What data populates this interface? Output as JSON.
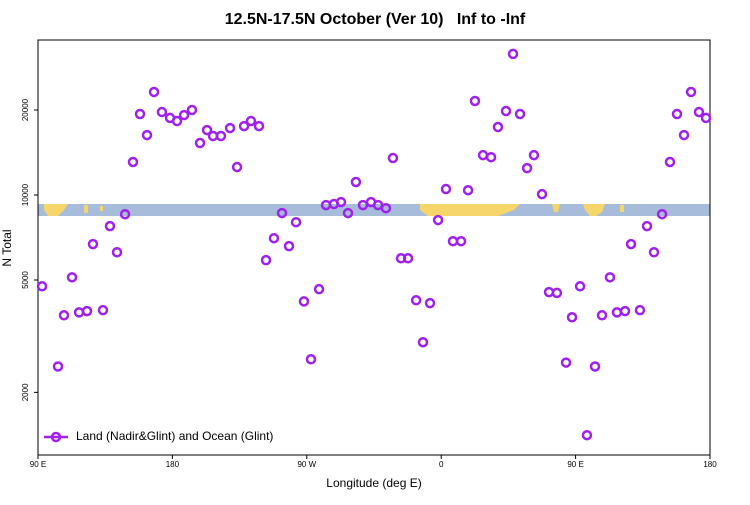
{
  "chart_data": {
    "type": "scatter",
    "title": "12.5N-17.5N October (Ver 10)   Inf to -Inf",
    "x_label": "Longitude (deg E)",
    "y_label": "N Total",
    "log_y": true,
    "legend": "bottom-left",
    "xlim": [
      90,
      540
    ],
    "ylim": [
      1200,
      35400
    ],
    "xticks": [
      {
        "value": 90,
        "label": "90 E"
      },
      180,
      {
        "value": 270,
        "label": "90 W"
      },
      {
        "value": 360,
        "label": "0"
      },
      {
        "value": 450,
        "label": "90 E"
      },
      {
        "value": 540,
        "label": "180"
      }
    ],
    "yticks": [
      2000,
      5000,
      10000,
      20000
    ],
    "x": [
      92.7,
      103.4,
      107.4,
      112.8,
      117.5,
      122.8,
      126.8,
      133.5,
      138.2,
      142.9,
      148.3,
      153.6,
      158.3,
      163.0,
      167.7,
      173.0,
      178.4,
      183.1,
      187.8,
      193.1,
      198.5,
      203.2,
      207.2,
      212.5,
      218.6,
      223.3,
      228.0,
      232.6,
      238.0,
      242.7,
      248.0,
      253.4,
      258.1,
      262.8,
      268.1,
      272.8,
      278.2,
      282.9,
      288.2,
      292.9,
      297.6,
      302.9,
      307.6,
      313.0,
      317.7,
      323.0,
      327.7,
      333.1,
      337.8,
      343.2,
      347.8,
      352.5,
      357.9,
      363.2,
      367.9,
      373.3,
      378.0,
      382.6,
      388.0,
      393.4,
      398.0,
      403.4,
      408.1,
      412.8,
      417.5,
      422.1,
      427.5,
      432.2,
      437.5,
      443.6,
      447.6,
      453.0,
      457.6,
      463.0,
      467.7,
      473.0,
      477.7,
      483.1,
      487.1,
      493.1,
      497.8,
      502.5,
      507.9,
      513.2,
      517.9,
      522.6,
      527.3,
      532.6,
      537.3
    ],
    "series": [
      {
        "name": "Land (Nadir&Glint) and Ocean (Glint)",
        "color": "#a020f0",
        "values": [
          4750,
          2470,
          3750,
          5110,
          3840,
          3880,
          6700,
          3910,
          7760,
          6270,
          8550,
          13090,
          19360,
          16300,
          23170,
          19670,
          18750,
          18280,
          19190,
          20000,
          15280,
          16980,
          16180,
          16180,
          17260,
          12560,
          17540,
          18280,
          17540,
          5880,
          7030,
          8630,
          6590,
          8010,
          4200,
          2620,
          4640,
          9210,
          9290,
          9440,
          8630,
          11120,
          9210,
          9440,
          9210,
          8980,
          13520,
          5970,
          5970,
          4240,
          3010,
          4140,
          8150,
          10500,
          6860,
          6860,
          10400,
          21530,
          13840,
          13610,
          17410,
          19830,
          31600,
          19360,
          12450,
          13840,
          10070,
          4530,
          4500,
          2550,
          3690,
          4750,
          1410,
          2470,
          3750,
          5110,
          3840,
          3880,
          6700,
          3910,
          7760,
          6270,
          8550,
          13090,
          19360,
          16300,
          23170,
          19670,
          18750
        ]
      }
    ]
  }
}
